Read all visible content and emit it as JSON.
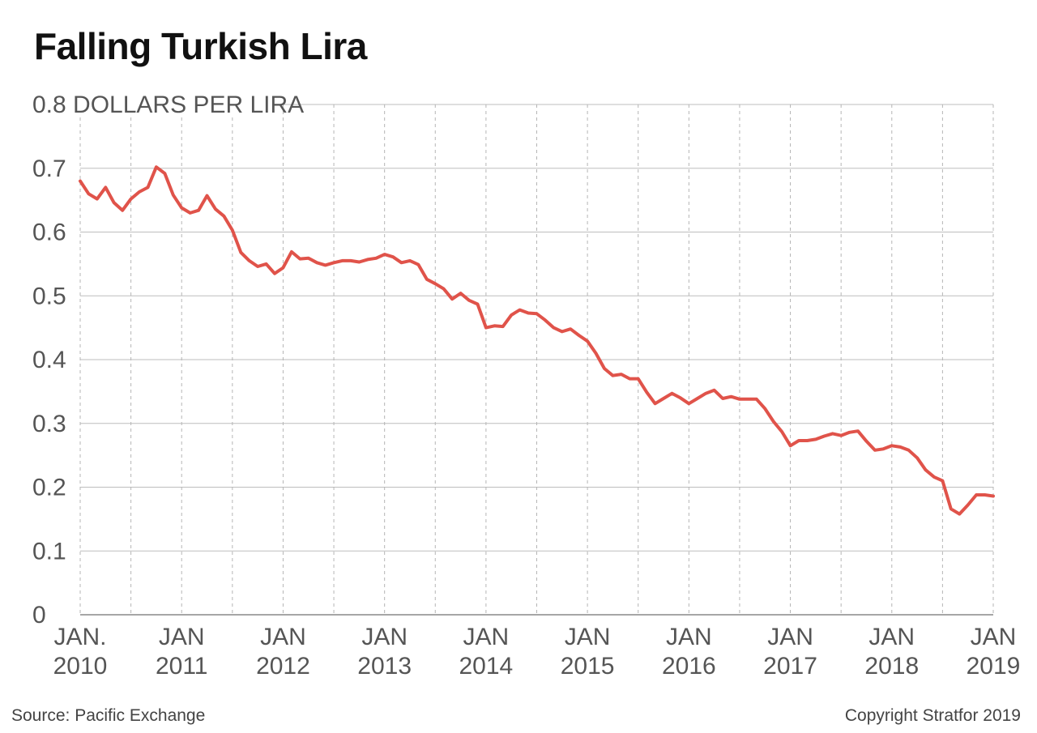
{
  "title": "Falling Turkish Lira",
  "source": "Source: Pacific Exchange",
  "copyright": "Copyright Stratfor 2019",
  "colors": {
    "line": "#e0534a",
    "grid": "#bdbdbd",
    "text": "#555555"
  },
  "chart_data": {
    "type": "line",
    "title": "Falling Turkish Lira",
    "ylabel": "DOLLARS PER LIRA",
    "ylim": [
      0,
      0.8
    ],
    "xlim": [
      2010.0,
      2019.0
    ],
    "grid": true,
    "y_ticks": [
      "0",
      "0.1",
      "0.2",
      "0.3",
      "0.4",
      "0.5",
      "0.6",
      "0.7",
      "0.8 DOLLARS PER LIRA"
    ],
    "x_ticks": [
      {
        "line1": "JAN.",
        "line2": "2010"
      },
      {
        "line1": "JAN",
        "line2": "2011"
      },
      {
        "line1": "JAN",
        "line2": "2012"
      },
      {
        "line1": "JAN",
        "line2": "2013"
      },
      {
        "line1": "JAN",
        "line2": "2014"
      },
      {
        "line1": "JAN",
        "line2": "2015"
      },
      {
        "line1": "JAN",
        "line2": "2016"
      },
      {
        "line1": "JAN",
        "line2": "2017"
      },
      {
        "line1": "JAN",
        "line2": "2018"
      },
      {
        "line1": "JAN",
        "line2": "2019"
      }
    ],
    "series": [
      {
        "x": [
          "2010-01",
          "2010-02",
          "2010-03",
          "2010-04",
          "2010-05",
          "2010-06",
          "2010-07",
          "2010-08",
          "2010-09",
          "2010-10",
          "2010-11",
          "2010-12",
          "2011-01",
          "2011-02",
          "2011-03",
          "2011-04",
          "2011-05",
          "2011-06",
          "2011-07",
          "2011-08",
          "2011-09",
          "2011-10",
          "2011-11",
          "2011-12",
          "2012-01",
          "2012-02",
          "2012-03",
          "2012-04",
          "2012-05",
          "2012-06",
          "2012-07",
          "2012-08",
          "2012-09",
          "2012-10",
          "2012-11",
          "2012-12",
          "2013-01",
          "2013-02",
          "2013-03",
          "2013-04",
          "2013-05",
          "2013-06",
          "2013-07",
          "2013-08",
          "2013-09",
          "2013-10",
          "2013-11",
          "2013-12",
          "2014-01",
          "2014-02",
          "2014-03",
          "2014-04",
          "2014-05",
          "2014-06",
          "2014-07",
          "2014-08",
          "2014-09",
          "2014-10",
          "2014-11",
          "2014-12",
          "2015-01",
          "2015-02",
          "2015-03",
          "2015-04",
          "2015-05",
          "2015-06",
          "2015-07",
          "2015-08",
          "2015-09",
          "2015-10",
          "2015-11",
          "2015-12",
          "2016-01",
          "2016-02",
          "2016-03",
          "2016-04",
          "2016-05",
          "2016-06",
          "2016-07",
          "2016-08",
          "2016-09",
          "2016-10",
          "2016-11",
          "2016-12",
          "2017-01",
          "2017-02",
          "2017-03",
          "2017-04",
          "2017-05",
          "2017-06",
          "2017-07",
          "2017-08",
          "2017-09",
          "2017-10",
          "2017-11",
          "2017-12",
          "2018-01",
          "2018-02",
          "2018-03",
          "2018-04",
          "2018-05",
          "2018-06",
          "2018-07",
          "2018-08",
          "2018-09",
          "2018-10",
          "2018-11",
          "2018-12",
          "2019-01"
        ],
        "values": [
          0.68,
          0.66,
          0.652,
          0.67,
          0.646,
          0.634,
          0.652,
          0.663,
          0.67,
          0.702,
          0.692,
          0.658,
          0.638,
          0.63,
          0.634,
          0.657,
          0.636,
          0.625,
          0.603,
          0.568,
          0.555,
          0.546,
          0.55,
          0.535,
          0.544,
          0.569,
          0.558,
          0.559,
          0.552,
          0.548,
          0.552,
          0.555,
          0.555,
          0.553,
          0.557,
          0.559,
          0.565,
          0.561,
          0.552,
          0.555,
          0.549,
          0.526,
          0.519,
          0.511,
          0.495,
          0.504,
          0.493,
          0.487,
          0.45,
          0.453,
          0.452,
          0.47,
          0.478,
          0.473,
          0.472,
          0.462,
          0.45,
          0.444,
          0.448,
          0.438,
          0.429,
          0.41,
          0.386,
          0.375,
          0.377,
          0.37,
          0.37,
          0.349,
          0.331,
          0.339,
          0.347,
          0.34,
          0.331,
          0.339,
          0.347,
          0.352,
          0.339,
          0.342,
          0.338,
          0.338,
          0.338,
          0.323,
          0.303,
          0.287,
          0.265,
          0.273,
          0.273,
          0.275,
          0.28,
          0.284,
          0.281,
          0.286,
          0.288,
          0.272,
          0.258,
          0.26,
          0.265,
          0.263,
          0.258,
          0.246,
          0.227,
          0.216,
          0.21,
          0.166,
          0.158,
          0.172,
          0.188,
          0.188,
          0.186
        ]
      }
    ]
  }
}
